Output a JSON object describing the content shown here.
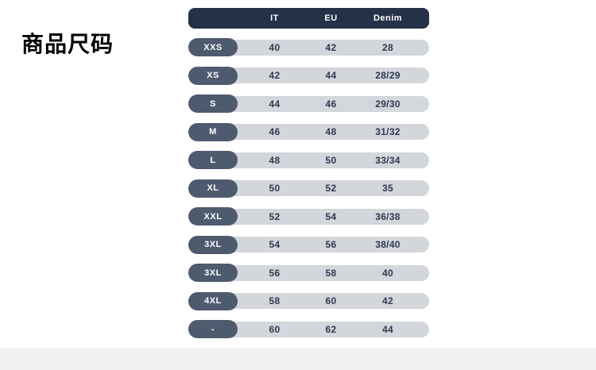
{
  "title": "商品尺码",
  "colors": {
    "header_bg": "#243148",
    "pill_bg": "#4e5a6e",
    "bar_bg": "#d3d6db",
    "value_text": "#2e3950",
    "header_text": "#ffffff",
    "bottom_band": "#f1f1f2",
    "page_bg": "#ffffff"
  },
  "table": {
    "columns": [
      "IT",
      "EU",
      "Denim"
    ],
    "rows": [
      {
        "size": "XXS",
        "it": "40",
        "eu": "42",
        "denim": "28"
      },
      {
        "size": "XS",
        "it": "42",
        "eu": "44",
        "denim": "28/29"
      },
      {
        "size": "S",
        "it": "44",
        "eu": "46",
        "denim": "29/30"
      },
      {
        "size": "M",
        "it": "46",
        "eu": "48",
        "denim": "31/32"
      },
      {
        "size": "L",
        "it": "48",
        "eu": "50",
        "denim": "33/34"
      },
      {
        "size": "XL",
        "it": "50",
        "eu": "52",
        "denim": "35"
      },
      {
        "size": "XXL",
        "it": "52",
        "eu": "54",
        "denim": "36/38"
      },
      {
        "size": "3XL",
        "it": "54",
        "eu": "56",
        "denim": "38/40"
      },
      {
        "size": "3XL",
        "it": "56",
        "eu": "58",
        "denim": "40"
      },
      {
        "size": "4XL",
        "it": "58",
        "eu": "60",
        "denim": "42"
      },
      {
        "size": "-",
        "it": "60",
        "eu": "62",
        "denim": "44"
      }
    ]
  }
}
